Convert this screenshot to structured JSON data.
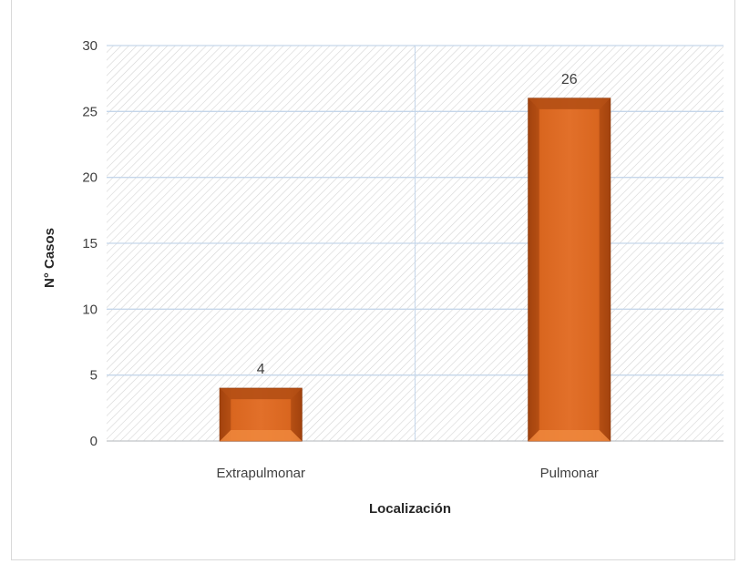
{
  "chart_data": {
    "type": "bar",
    "categories": [
      "Extrapulmonar",
      "Pulmonar"
    ],
    "values": [
      4,
      26
    ],
    "data_labels": [
      "4",
      "26"
    ],
    "title": "",
    "xlabel": "Localización",
    "ylabel": "N° Casos",
    "ylim": [
      0,
      30
    ],
    "yticks": [
      0,
      5,
      10,
      15,
      20,
      25,
      30
    ],
    "grid": true,
    "legend": "none",
    "colors": {
      "bar": "#c8581a",
      "bar_light": "#e8742a",
      "bar_dark": "#8f3a0c",
      "grid": "#c5d6ea",
      "hatch": "#d4d4d4",
      "axis": "#bfbfbf"
    }
  }
}
